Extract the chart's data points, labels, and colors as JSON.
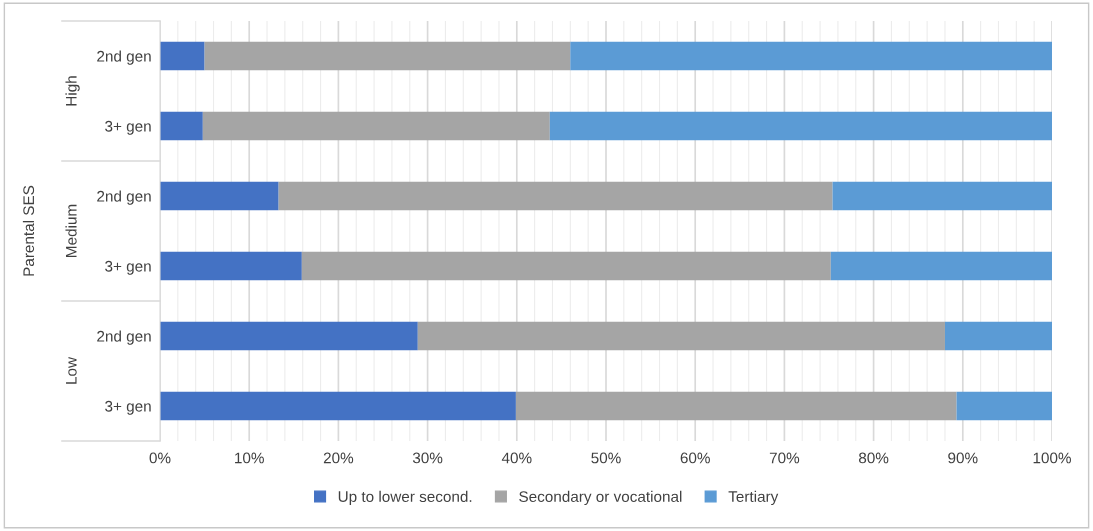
{
  "chart_data": {
    "type": "bar",
    "orientation": "horizontal",
    "stacked": true,
    "ylabel": "Parental SES",
    "categories": [
      "2nd gen",
      "3+ gen",
      "2nd gen",
      "3+ gen",
      "2nd gen",
      "3+ gen"
    ],
    "annotations": [
      "High",
      "Medium",
      "Low"
    ],
    "series": [
      {
        "name": "Up to lower second.",
        "color": "#4472c4",
        "values": [
          5.0,
          4.8,
          13.3,
          15.9,
          28.9,
          39.9
        ]
      },
      {
        "name": "Secondary or vocational",
        "color": "#a5a5a5",
        "values": [
          41.0,
          38.9,
          62.1,
          59.3,
          59.1,
          49.4
        ]
      },
      {
        "name": "Tertiary",
        "color": "#5b9bd5",
        "values": [
          54.0,
          56.3,
          24.6,
          24.8,
          12.0,
          10.7
        ]
      }
    ],
    "xlim": [
      0,
      100
    ],
    "xticks": [
      {
        "value": 0,
        "label": "0%"
      },
      {
        "value": 2,
        "label": null
      },
      {
        "value": 4,
        "label": null
      },
      {
        "value": 6,
        "label": null
      },
      {
        "value": 8,
        "label": null
      },
      {
        "value": 10,
        "label": "10%"
      },
      {
        "value": 12,
        "label": null
      },
      {
        "value": 14,
        "label": null
      },
      {
        "value": 16,
        "label": null
      },
      {
        "value": 18,
        "label": null
      },
      {
        "value": 20,
        "label": "20%"
      },
      {
        "value": 22,
        "label": null
      },
      {
        "value": 24,
        "label": null
      },
      {
        "value": 26,
        "label": null
      },
      {
        "value": 28,
        "label": null
      },
      {
        "value": 30,
        "label": "30%"
      },
      {
        "value": 32,
        "label": null
      },
      {
        "value": 34,
        "label": null
      },
      {
        "value": 36,
        "label": null
      },
      {
        "value": 38,
        "label": null
      },
      {
        "value": 40,
        "label": "40%"
      },
      {
        "value": 42,
        "label": null
      },
      {
        "value": 44,
        "label": null
      },
      {
        "value": 46,
        "label": null
      },
      {
        "value": 48,
        "label": null
      },
      {
        "value": 50,
        "label": "50%"
      },
      {
        "value": 52,
        "label": null
      },
      {
        "value": 54,
        "label": null
      },
      {
        "value": 56,
        "label": null
      },
      {
        "value": 58,
        "label": null
      },
      {
        "value": 60,
        "label": "60%"
      },
      {
        "value": 62,
        "label": null
      },
      {
        "value": 64,
        "label": null
      },
      {
        "value": 66,
        "label": null
      },
      {
        "value": 68,
        "label": null
      },
      {
        "value": 70,
        "label": "70%"
      },
      {
        "value": 72,
        "label": null
      },
      {
        "value": 74,
        "label": null
      },
      {
        "value": 76,
        "label": null
      },
      {
        "value": 78,
        "label": null
      },
      {
        "value": 80,
        "label": "80%"
      },
      {
        "value": 82,
        "label": null
      },
      {
        "value": 84,
        "label": null
      },
      {
        "value": 86,
        "label": null
      },
      {
        "value": 88,
        "label": null
      },
      {
        "value": 90,
        "label": "90%"
      },
      {
        "value": 92,
        "label": null
      },
      {
        "value": 94,
        "label": null
      },
      {
        "value": 96,
        "label": null
      },
      {
        "value": 98,
        "label": null
      },
      {
        "value": 100,
        "label": "100%"
      }
    ],
    "grid": "x",
    "legend": "bottom"
  }
}
